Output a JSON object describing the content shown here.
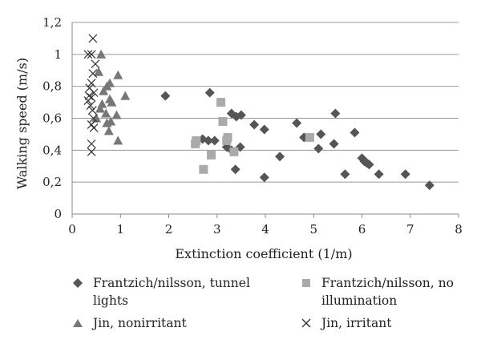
{
  "chart_data": {
    "type": "scatter",
    "title": "",
    "xlabel": "Extinction coefficient (1/m)",
    "ylabel": "Walking speed (m/s)",
    "xlim": [
      0,
      8
    ],
    "ylim": [
      0,
      1.2
    ],
    "xticks": [
      "0",
      "1",
      "2",
      "3",
      "4",
      "5",
      "6",
      "7",
      "8"
    ],
    "yticks": [
      "0",
      "0,2",
      "0,4",
      "0,6",
      "0,8",
      "1",
      "1,2"
    ],
    "grid": "horizontal",
    "legend_position": "bottom",
    "series": [
      {
        "name": "Frantzich/nilsson, tunnel lights",
        "marker": "diamond",
        "color": "#555555",
        "points": [
          [
            1.93,
            0.74
          ],
          [
            2.85,
            0.76
          ],
          [
            2.7,
            0.47
          ],
          [
            2.82,
            0.46
          ],
          [
            2.95,
            0.46
          ],
          [
            3.2,
            0.42
          ],
          [
            3.3,
            0.63
          ],
          [
            3.4,
            0.61
          ],
          [
            3.5,
            0.62
          ],
          [
            3.3,
            0.4
          ],
          [
            3.48,
            0.42
          ],
          [
            3.38,
            0.28
          ],
          [
            3.77,
            0.56
          ],
          [
            3.98,
            0.53
          ],
          [
            3.98,
            0.23
          ],
          [
            4.3,
            0.36
          ],
          [
            4.65,
            0.57
          ],
          [
            4.8,
            0.48
          ],
          [
            5.1,
            0.41
          ],
          [
            5.15,
            0.5
          ],
          [
            5.45,
            0.63
          ],
          [
            5.42,
            0.44
          ],
          [
            5.65,
            0.25
          ],
          [
            5.85,
            0.51
          ],
          [
            6.0,
            0.35
          ],
          [
            6.05,
            0.33
          ],
          [
            6.1,
            0.32
          ],
          [
            6.15,
            0.31
          ],
          [
            6.35,
            0.25
          ],
          [
            6.9,
            0.25
          ],
          [
            7.4,
            0.18
          ]
        ]
      },
      {
        "name": "Frantzich/nilsson, no illumination",
        "marker": "square",
        "color": "#aaaaaa",
        "points": [
          [
            2.55,
            0.44
          ],
          [
            2.57,
            0.46
          ],
          [
            2.72,
            0.28
          ],
          [
            2.88,
            0.37
          ],
          [
            3.08,
            0.7
          ],
          [
            3.12,
            0.58
          ],
          [
            3.2,
            0.46
          ],
          [
            3.22,
            0.48
          ],
          [
            3.35,
            0.39
          ],
          [
            4.92,
            0.48
          ]
        ]
      },
      {
        "name": "Jin, nonirritant",
        "marker": "triangle",
        "color": "#777777",
        "points": [
          [
            0.6,
            1.0
          ],
          [
            0.55,
            0.89
          ],
          [
            0.95,
            0.87
          ],
          [
            0.72,
            0.8
          ],
          [
            0.78,
            0.82
          ],
          [
            0.65,
            0.77
          ],
          [
            1.1,
            0.74
          ],
          [
            0.78,
            0.72
          ],
          [
            0.82,
            0.7
          ],
          [
            0.62,
            0.69
          ],
          [
            0.58,
            0.66
          ],
          [
            0.7,
            0.63
          ],
          [
            0.92,
            0.62
          ],
          [
            0.5,
            0.6
          ],
          [
            0.8,
            0.58
          ],
          [
            0.72,
            0.57
          ],
          [
            0.76,
            0.52
          ],
          [
            0.95,
            0.46
          ]
        ]
      },
      {
        "name": "Jin, irritant",
        "marker": "cross",
        "color": "#333333",
        "points": [
          [
            0.43,
            1.1
          ],
          [
            0.33,
            1.0
          ],
          [
            0.4,
            1.0
          ],
          [
            0.48,
            0.94
          ],
          [
            0.43,
            0.88
          ],
          [
            0.4,
            0.82
          ],
          [
            0.36,
            0.79
          ],
          [
            0.45,
            0.76
          ],
          [
            0.35,
            0.74
          ],
          [
            0.4,
            0.73
          ],
          [
            0.33,
            0.71
          ],
          [
            0.38,
            0.68
          ],
          [
            0.42,
            0.65
          ],
          [
            0.44,
            0.6
          ],
          [
            0.4,
            0.56
          ],
          [
            0.45,
            0.54
          ],
          [
            0.4,
            0.44
          ],
          [
            0.4,
            0.39
          ]
        ]
      }
    ]
  }
}
